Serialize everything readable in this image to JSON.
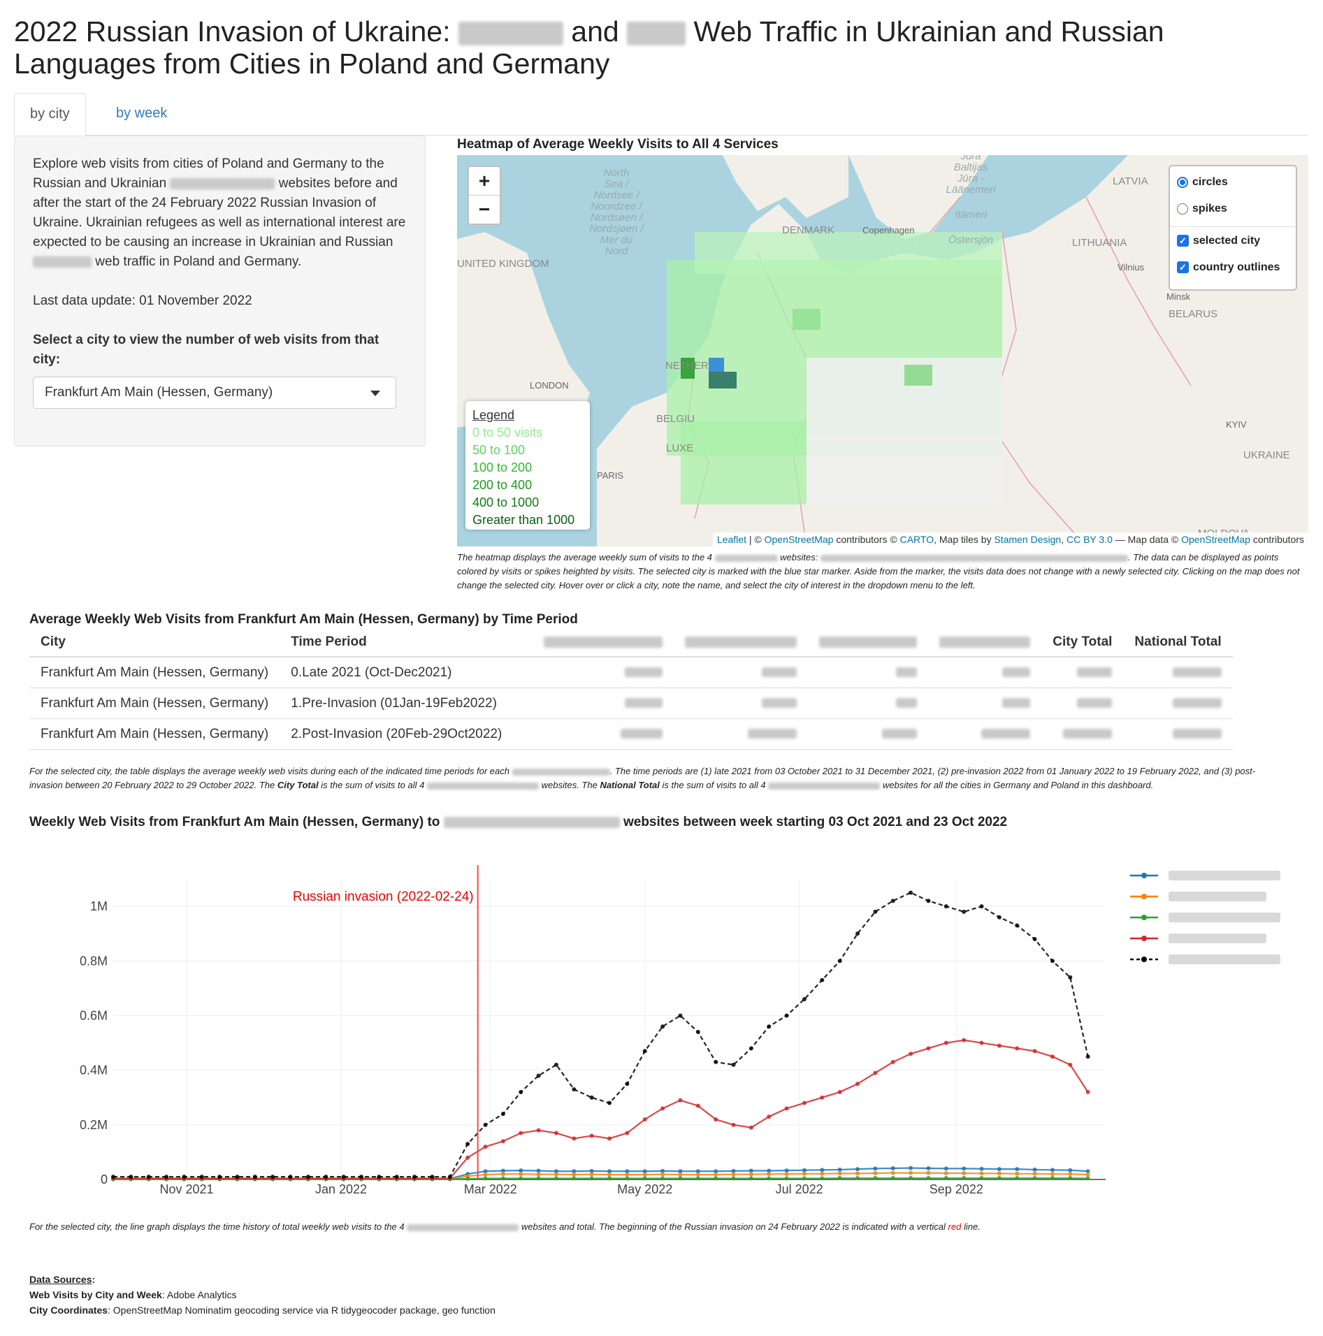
{
  "title": {
    "prefix": "2022 Russian Invasion of Ukraine:",
    "and": "and",
    "suffix": "Web Traffic in Ukrainian and Russian Languages from Cities in Poland and Germany"
  },
  "tabs": [
    "by city",
    "by week"
  ],
  "sidebar": {
    "intro_a": "Explore web visits from cities of Poland and Germany to the Russian and Ukrainian",
    "intro_b": "websites before and after the start of the 24 February 2022 Russian Invasion of Ukraine. Ukrainian refugees as well as international interest are expected to be causing an increase in Ukrainian and Russian",
    "intro_c": "web traffic in Poland and Germany.",
    "last_update": "Last data update: 01 November 2022",
    "select_label": "Select a city to view the number of web visits from that city:",
    "selected_city": "Frankfurt Am Main (Hessen, Germany)"
  },
  "map": {
    "title": "Heatmap of Average Weekly Visits to All 4 Services",
    "zoom_in": "+",
    "zoom_out": "−",
    "layers": {
      "circles": "circles",
      "spikes": "spikes",
      "selected_city": "selected city",
      "country_outlines": "country outlines"
    },
    "labels": {
      "north_sea": [
        "North",
        "Sea /",
        "Nordsee /",
        "Noordzee /",
        "Nordsøen /",
        "Nordsjøen /",
        "Mer du",
        "Nord"
      ],
      "baltic": [
        "Jūra",
        "Baltijas",
        "Jūra -",
        "Läänemeri",
        "Itämeri",
        "Östersjön"
      ],
      "denmark": "DENMARK",
      "copenhagen": "Copenhagen",
      "latvia": "LATVIA",
      "lithuania": "LITHUANIA",
      "vilnius": "Vilnius",
      "minsk": "Minsk",
      "belarus": "BELARUS",
      "uk": "UNITED KINGDOM",
      "london": "LONDON",
      "nether": "NETHER",
      "belgium": "BELGIU",
      "luxe": "LUXE",
      "paris": "PARIS",
      "kyiv": "KYIV",
      "ukraine": "UKRAINE",
      "moldova": "MOLDOVA"
    },
    "legend": {
      "title": "Legend",
      "items": [
        {
          "label": "0 to 50 visits",
          "color": "#90ee90"
        },
        {
          "label": "50 to 100",
          "color": "#5fd35f"
        },
        {
          "label": "100 to 200",
          "color": "#32b832"
        },
        {
          "label": "200 to 400",
          "color": "#1e9a1e"
        },
        {
          "label": "400 to 1000",
          "color": "#137a13"
        },
        {
          "label": "Greater than 1000",
          "color": "#0b5e0b"
        }
      ]
    },
    "attribution": {
      "leaflet": "Leaflet",
      "sep1": " | © ",
      "osm": "OpenStreetMap",
      "mid1": " contributors © ",
      "carto": "CARTO",
      "mid2": ", Map tiles by ",
      "stamen": "Stamen Design",
      "comma": ", ",
      "cc": "CC BY 3.0",
      "mid3": " — Map data © ",
      "osm2": "OpenStreetMap",
      "end": " contributors"
    },
    "caption_a": "The heatmap displays the average weekly sum of visits to the 4",
    "caption_b": "websites:",
    "caption_c": ". The data can be displayed as points colored by visits or spikes heighted by visits. The selected city is marked with the blue star marker. Aside from the marker, the visits data does not change with a newly selected city. Clicking on the map does not change the selected city. Hover over or click a city, note the name, and select the city of interest in the dropdown menu to the left."
  },
  "table": {
    "title": "Average Weekly Web Visits from Frankfurt Am Main (Hessen, Germany) by Time Period",
    "headers": {
      "city": "City",
      "period": "Time Period",
      "city_total": "City Total",
      "national_total": "National Total"
    },
    "rows": [
      {
        "city": "Frankfurt Am Main (Hessen, Germany)",
        "period": "0.Late 2021 (Oct-Dec2021)"
      },
      {
        "city": "Frankfurt Am Main (Hessen, Germany)",
        "period": "1.Pre-Invasion (01Jan-19Feb2022)"
      },
      {
        "city": "Frankfurt Am Main (Hessen, Germany)",
        "period": "2.Post-Invasion (20Feb-29Oct2022)"
      }
    ],
    "caption_a": "For the selected city, the table displays the average weekly web visits during each of the indicated time periods for each",
    "caption_b": ". The time periods are (1) late 2021 from 03 October 2021 to 31 December 2021, (2) pre-invasion 2022 from 01 January 2022 to 19 February 2022, and (3) post-invasion between 20 February 2022 to 29 October 2022. The",
    "caption_city_total": "City Total",
    "caption_c": "is the sum of visits to all 4",
    "caption_d": "websites. The",
    "caption_national_total": "National Total",
    "caption_e": "is the sum of visits to all 4",
    "caption_f": "websites for all the cities in Germany and Poland in this dashboard."
  },
  "chart_section": {
    "title_a": "Weekly Web Visits from Frankfurt Am Main (Hessen, Germany) to",
    "title_b": "websites between week starting 03 Oct 2021 and 23 Oct 2022",
    "caption_a": "For the selected city, the line graph displays the time history of total weekly web visits to the 4",
    "caption_b": "websites and total. The beginning of the Russian invasion on 24 February 2022 is indicated with a vertical",
    "caption_red": "red",
    "caption_c": "line."
  },
  "chart_data": {
    "type": "line",
    "x_ticks": [
      "Nov 2021",
      "Jan 2022",
      "Mar 2022",
      "May 2022",
      "Jul 2022",
      "Sep 2022"
    ],
    "y_ticks": [
      "0",
      "0.2M",
      "0.4M",
      "0.6M",
      "0.8M",
      "1M"
    ],
    "ylim": [
      0,
      1100000
    ],
    "annotation": {
      "label": "Russian invasion (2022-02-24)",
      "date": "2022-02-24"
    },
    "weeks": [
      "2021-10-03",
      "2021-10-10",
      "2021-10-17",
      "2021-10-24",
      "2021-10-31",
      "2021-11-07",
      "2021-11-14",
      "2021-11-21",
      "2021-11-28",
      "2021-12-05",
      "2021-12-12",
      "2021-12-19",
      "2021-12-26",
      "2022-01-02",
      "2022-01-09",
      "2022-01-16",
      "2022-01-23",
      "2022-01-30",
      "2022-02-06",
      "2022-02-13",
      "2022-02-20",
      "2022-02-27",
      "2022-03-06",
      "2022-03-13",
      "2022-03-20",
      "2022-03-27",
      "2022-04-03",
      "2022-04-10",
      "2022-04-17",
      "2022-04-24",
      "2022-05-01",
      "2022-05-08",
      "2022-05-15",
      "2022-05-22",
      "2022-05-29",
      "2022-06-05",
      "2022-06-12",
      "2022-06-19",
      "2022-06-26",
      "2022-07-03",
      "2022-07-10",
      "2022-07-17",
      "2022-07-24",
      "2022-07-31",
      "2022-08-07",
      "2022-08-14",
      "2022-08-21",
      "2022-08-28",
      "2022-09-04",
      "2022-09-11",
      "2022-09-18",
      "2022-09-25",
      "2022-10-02",
      "2022-10-09",
      "2022-10-16",
      "2022-10-23"
    ],
    "series": [
      {
        "color": "#1f77b4",
        "values": [
          3000,
          3000,
          3000,
          3000,
          3000,
          3000,
          3000,
          3000,
          3000,
          3000,
          3000,
          3000,
          3000,
          3000,
          3000,
          3000,
          3000,
          3000,
          3000,
          3000,
          20000,
          30000,
          32000,
          33000,
          32000,
          30000,
          30000,
          31000,
          30000,
          30000,
          30000,
          31000,
          30000,
          30000,
          30000,
          31000,
          32000,
          32000,
          33000,
          34000,
          35000,
          36000,
          38000,
          40000,
          41000,
          42000,
          41000,
          40000,
          40000,
          39000,
          38000,
          38000,
          36000,
          35000,
          34000,
          30000
        ]
      },
      {
        "color": "#ff7f0e",
        "values": [
          2000,
          2000,
          2000,
          2000,
          2000,
          2000,
          2000,
          2000,
          2000,
          2000,
          2000,
          2000,
          2000,
          2000,
          2000,
          2000,
          2000,
          2000,
          2000,
          2000,
          12000,
          18000,
          20000,
          20000,
          19000,
          19000,
          18000,
          19000,
          18000,
          18000,
          18000,
          19000,
          18000,
          18000,
          18000,
          19000,
          19000,
          20000,
          20000,
          21000,
          21000,
          22000,
          22000,
          23000,
          24000,
          24000,
          24000,
          23000,
          23000,
          22000,
          22000,
          21000,
          21000,
          20000,
          20000,
          18000
        ]
      },
      {
        "color": "#2ca02c",
        "values": [
          1000,
          1000,
          1000,
          1000,
          1000,
          1000,
          1000,
          1000,
          1000,
          1000,
          1000,
          1000,
          1000,
          1000,
          1000,
          1000,
          1000,
          1000,
          1000,
          1000,
          3000,
          4000,
          4000,
          4000,
          4000,
          4000,
          4000,
          4000,
          4000,
          4000,
          4000,
          4000,
          4000,
          4000,
          4000,
          4000,
          4000,
          4000,
          4000,
          4000,
          4000,
          5000,
          5000,
          5000,
          5000,
          5000,
          5000,
          5000,
          5000,
          5000,
          5000,
          5000,
          5000,
          5000,
          5000,
          4000
        ]
      },
      {
        "color": "#d62728",
        "values": [
          4000,
          4000,
          4000,
          4000,
          4000,
          4000,
          4000,
          4000,
          4000,
          4000,
          4000,
          4000,
          4000,
          4000,
          4000,
          4000,
          4000,
          4000,
          4000,
          4000,
          80000,
          120000,
          140000,
          170000,
          180000,
          170000,
          150000,
          160000,
          150000,
          170000,
          220000,
          260000,
          290000,
          270000,
          220000,
          200000,
          190000,
          230000,
          260000,
          280000,
          300000,
          320000,
          350000,
          390000,
          430000,
          460000,
          480000,
          500000,
          510000,
          500000,
          490000,
          480000,
          470000,
          450000,
          420000,
          320000
        ]
      },
      {
        "color": "#000000",
        "values": [
          10000,
          10000,
          10000,
          10000,
          10000,
          10000,
          10000,
          10000,
          10000,
          10000,
          10000,
          10000,
          10000,
          10000,
          10000,
          10000,
          10000,
          10000,
          10000,
          10000,
          130000,
          200000,
          240000,
          320000,
          380000,
          420000,
          330000,
          300000,
          280000,
          350000,
          470000,
          560000,
          600000,
          540000,
          430000,
          420000,
          480000,
          560000,
          600000,
          660000,
          730000,
          800000,
          900000,
          980000,
          1020000,
          1050000,
          1020000,
          1000000,
          980000,
          1000000,
          960000,
          930000,
          880000,
          800000,
          740000,
          450000
        ]
      }
    ]
  },
  "sources": {
    "heading": "Data Sources",
    "colon": ":",
    "web_label": "Web Visits by City and Week",
    "web_value": ": Adobe Analytics",
    "coord_label": "City Coordinates",
    "coord_value": ": OpenStreetMap Nominatim geocoding service via R tidygeocoder package, geo function"
  }
}
